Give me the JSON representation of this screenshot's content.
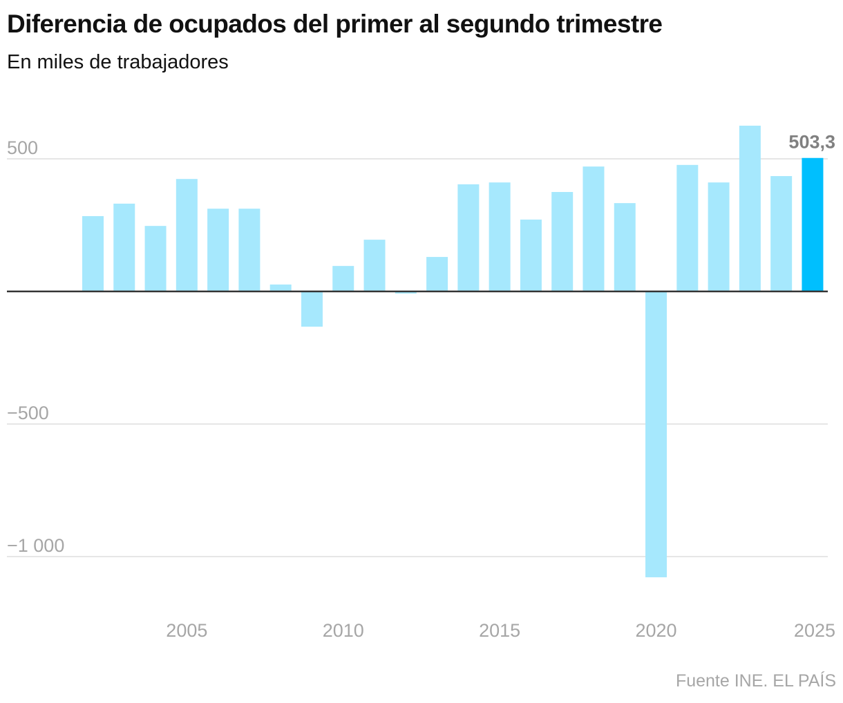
{
  "header": {
    "title": "Diferencia de ocupados del primer al segundo trimestre",
    "subtitle": "En miles de trabajadores"
  },
  "footer": {
    "source": "Fuente INE. EL PAÍS"
  },
  "colors": {
    "bar": "#a6e8fd",
    "highlight": "#00bffe",
    "gridline": "#e6e6e6",
    "zero_line": "#333333",
    "tick_text": "#a6a6a6",
    "data_label": "#808080"
  },
  "chart_data": {
    "type": "bar",
    "title": "Diferencia de ocupados del primer al segundo trimestre",
    "subtitle": "En miles de trabajadores",
    "xlabel": "",
    "ylabel": "",
    "x": [
      2002,
      2003,
      2004,
      2005,
      2006,
      2007,
      2008,
      2009,
      2010,
      2011,
      2012,
      2013,
      2014,
      2015,
      2016,
      2017,
      2018,
      2019,
      2020,
      2021,
      2022,
      2023,
      2024,
      2025
    ],
    "values": [
      284,
      331,
      247,
      424,
      312,
      312,
      26,
      -133,
      96,
      195,
      -8,
      130,
      404,
      411,
      271,
      375,
      471,
      333,
      -1078,
      477,
      411,
      625,
      435,
      503.3
    ],
    "highlight_index": 23,
    "highlight_label": "503,3",
    "ylim": [
      -1160,
      680
    ],
    "yticks": [
      500,
      -500,
      -1000
    ],
    "ytick_labels": [
      "500",
      "−500",
      "−1 000"
    ],
    "xticks": [
      2005,
      2010,
      2015,
      2020,
      2025
    ],
    "xtick_labels": [
      "2005",
      "2010",
      "2015",
      "2020",
      "2025"
    ],
    "grid": true,
    "legend": "none",
    "source": "Fuente INE. EL PAÍS"
  }
}
